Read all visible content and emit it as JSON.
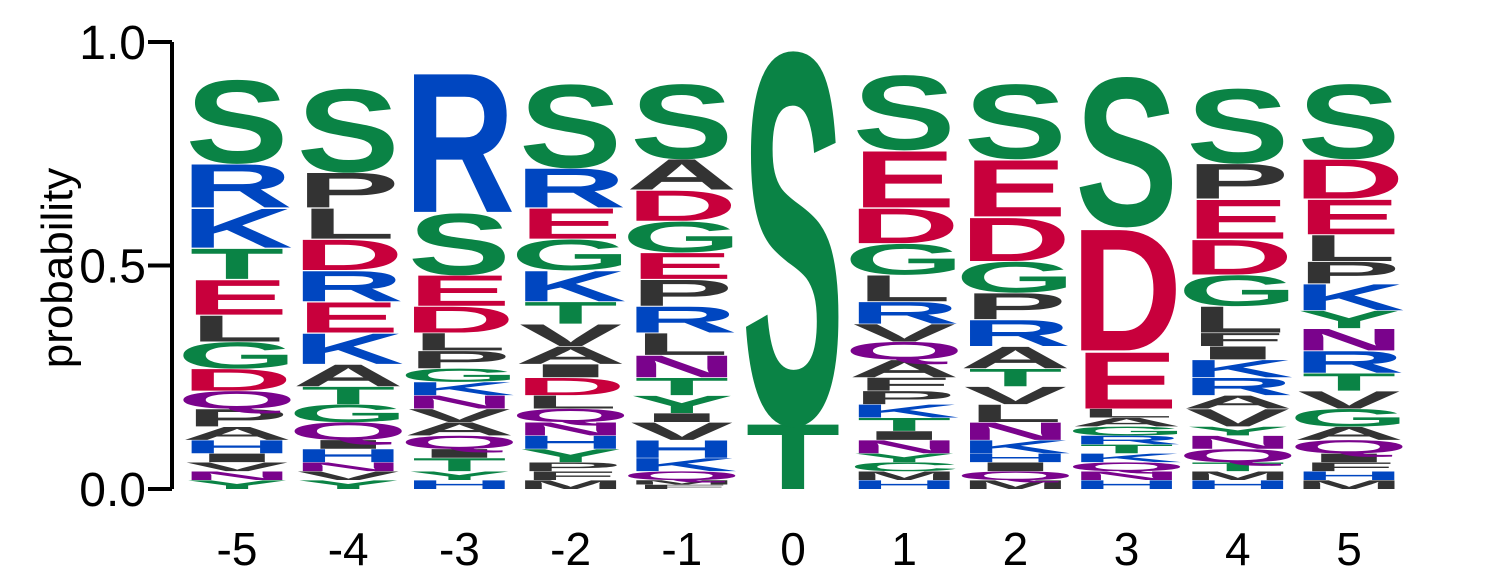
{
  "chart_data": {
    "type": "sequence-logo",
    "ylabel": "probability",
    "ylim": [
      0,
      1
    ],
    "y_ticks": [
      "0.0",
      "0.5",
      "1.0"
    ],
    "y_tick_values": [
      0,
      0.5,
      1
    ],
    "colors": {
      "S": "#0a8345",
      "T": "#0a8345",
      "G": "#0a8345",
      "Y": "#0a8345",
      "C": "#0a8345",
      "R": "#0046c0",
      "K": "#0046c0",
      "H": "#0046c0",
      "D": "#c8003c",
      "E": "#c8003c",
      "N": "#7a038c",
      "Q": "#7a038c",
      "A": "#333333",
      "P": "#333333",
      "L": "#333333",
      "V": "#333333",
      "I": "#333333",
      "F": "#333333",
      "M": "#333333",
      "W": "#333333"
    },
    "positions": [
      {
        "label": "-5",
        "letters": [
          [
            "S",
            0.19
          ],
          [
            "R",
            0.1
          ],
          [
            "K",
            0.09
          ],
          [
            "T",
            0.07
          ],
          [
            "E",
            0.08
          ],
          [
            "L",
            0.06
          ],
          [
            "G",
            0.06
          ],
          [
            "D",
            0.05
          ],
          [
            "Q",
            0.04
          ],
          [
            "P",
            0.04
          ],
          [
            "A",
            0.03
          ],
          [
            "H",
            0.03
          ],
          [
            "I",
            0.02
          ],
          [
            "V",
            0.02
          ],
          [
            "N",
            0.02
          ],
          [
            "Y",
            0.02
          ]
        ]
      },
      {
        "label": "-4",
        "letters": [
          [
            "S",
            0.19
          ],
          [
            "P",
            0.08
          ],
          [
            "L",
            0.07
          ],
          [
            "D",
            0.07
          ],
          [
            "R",
            0.07
          ],
          [
            "E",
            0.07
          ],
          [
            "K",
            0.07
          ],
          [
            "A",
            0.05
          ],
          [
            "T",
            0.04
          ],
          [
            "G",
            0.04
          ],
          [
            "Q",
            0.04
          ],
          [
            "I",
            0.02
          ],
          [
            "H",
            0.03
          ],
          [
            "N",
            0.02
          ],
          [
            "V",
            0.02
          ],
          [
            "Y",
            0.02
          ]
        ]
      },
      {
        "label": "-3",
        "letters": [
          [
            "R",
            0.32
          ],
          [
            "S",
            0.14
          ],
          [
            "E",
            0.07
          ],
          [
            "D",
            0.06
          ],
          [
            "L",
            0.04
          ],
          [
            "P",
            0.04
          ],
          [
            "G",
            0.03
          ],
          [
            "K",
            0.03
          ],
          [
            "N",
            0.03
          ],
          [
            "V",
            0.03
          ],
          [
            "A",
            0.03
          ],
          [
            "Q",
            0.03
          ],
          [
            "I",
            0.02
          ],
          [
            "T",
            0.03
          ],
          [
            "Y",
            0.02
          ],
          [
            "H",
            0.02
          ]
        ]
      },
      {
        "label": "-2",
        "letters": [
          [
            "S",
            0.19
          ],
          [
            "R",
            0.09
          ],
          [
            "E",
            0.07
          ],
          [
            "G",
            0.07
          ],
          [
            "K",
            0.07
          ],
          [
            "T",
            0.05
          ],
          [
            "V",
            0.05
          ],
          [
            "A",
            0.04
          ],
          [
            "I",
            0.03
          ],
          [
            "D",
            0.04
          ],
          [
            "L",
            0.03
          ],
          [
            "Q",
            0.03
          ],
          [
            "N",
            0.03
          ],
          [
            "H",
            0.03
          ],
          [
            "Y",
            0.03
          ],
          [
            "P",
            0.02
          ],
          [
            "F",
            0.02
          ],
          [
            "M",
            0.02
          ]
        ]
      },
      {
        "label": "-1",
        "letters": [
          [
            "S",
            0.17
          ],
          [
            "A",
            0.07
          ],
          [
            "D",
            0.07
          ],
          [
            "G",
            0.07
          ],
          [
            "E",
            0.06
          ],
          [
            "P",
            0.06
          ],
          [
            "R",
            0.06
          ],
          [
            "L",
            0.05
          ],
          [
            "N",
            0.05
          ],
          [
            "T",
            0.04
          ],
          [
            "Y",
            0.04
          ],
          [
            "I",
            0.02
          ],
          [
            "V",
            0.04
          ],
          [
            "H",
            0.04
          ],
          [
            "K",
            0.03
          ],
          [
            "Q",
            0.02
          ],
          [
            "M",
            0.01
          ],
          [
            "F",
            0.01
          ]
        ]
      },
      {
        "label": "0",
        "letters": [
          [
            "S",
            0.85
          ],
          [
            "T",
            0.15
          ]
        ]
      },
      {
        "label": "1",
        "letters": [
          [
            "S",
            0.17
          ],
          [
            "E",
            0.13
          ],
          [
            "D",
            0.08
          ],
          [
            "G",
            0.07
          ],
          [
            "L",
            0.06
          ],
          [
            "R",
            0.05
          ],
          [
            "V",
            0.04
          ],
          [
            "Q",
            0.04
          ],
          [
            "A",
            0.04
          ],
          [
            "F",
            0.03
          ],
          [
            "P",
            0.03
          ],
          [
            "K",
            0.03
          ],
          [
            "T",
            0.03
          ],
          [
            "I",
            0.02
          ],
          [
            "N",
            0.03
          ],
          [
            "Y",
            0.02
          ],
          [
            "C",
            0.02
          ],
          [
            "M",
            0.02
          ],
          [
            "H",
            0.02
          ]
        ]
      },
      {
        "label": "2",
        "letters": [
          [
            "S",
            0.17
          ],
          [
            "E",
            0.13
          ],
          [
            "D",
            0.1
          ],
          [
            "G",
            0.07
          ],
          [
            "P",
            0.06
          ],
          [
            "R",
            0.06
          ],
          [
            "A",
            0.05
          ],
          [
            "T",
            0.04
          ],
          [
            "V",
            0.04
          ],
          [
            "L",
            0.04
          ],
          [
            "N",
            0.04
          ],
          [
            "K",
            0.03
          ],
          [
            "H",
            0.02
          ],
          [
            "I",
            0.02
          ],
          [
            "Q",
            0.02
          ],
          [
            "M",
            0.02
          ]
        ]
      },
      {
        "label": "3",
        "letters": [
          [
            "S",
            0.34
          ],
          [
            "D",
            0.28
          ],
          [
            "E",
            0.13
          ],
          [
            "L",
            0.02
          ],
          [
            "A",
            0.02
          ],
          [
            "G",
            0.02
          ],
          [
            "R",
            0.02
          ],
          [
            "T",
            0.02
          ],
          [
            "K",
            0.02
          ],
          [
            "Q",
            0.02
          ],
          [
            "N",
            0.02
          ],
          [
            "H",
            0.02
          ]
        ]
      },
      {
        "label": "4",
        "letters": [
          [
            "S",
            0.17
          ],
          [
            "P",
            0.08
          ],
          [
            "E",
            0.09
          ],
          [
            "D",
            0.08
          ],
          [
            "G",
            0.07
          ],
          [
            "L",
            0.06
          ],
          [
            "F",
            0.03
          ],
          [
            "I",
            0.03
          ],
          [
            "K",
            0.04
          ],
          [
            "R",
            0.04
          ],
          [
            "A",
            0.03
          ],
          [
            "V",
            0.04
          ],
          [
            "Y",
            0.02
          ],
          [
            "N",
            0.03
          ],
          [
            "Q",
            0.03
          ],
          [
            "T",
            0.02
          ],
          [
            "M",
            0.02
          ],
          [
            "H",
            0.02
          ]
        ]
      },
      {
        "label": "5",
        "letters": [
          [
            "S",
            0.17
          ],
          [
            "D",
            0.09
          ],
          [
            "E",
            0.08
          ],
          [
            "L",
            0.06
          ],
          [
            "P",
            0.05
          ],
          [
            "K",
            0.06
          ],
          [
            "Y",
            0.04
          ],
          [
            "N",
            0.05
          ],
          [
            "R",
            0.05
          ],
          [
            "T",
            0.04
          ],
          [
            "V",
            0.04
          ],
          [
            "G",
            0.04
          ],
          [
            "A",
            0.03
          ],
          [
            "Q",
            0.03
          ],
          [
            "I",
            0.02
          ],
          [
            "F",
            0.02
          ],
          [
            "H",
            0.02
          ],
          [
            "M",
            0.02
          ]
        ]
      }
    ]
  }
}
